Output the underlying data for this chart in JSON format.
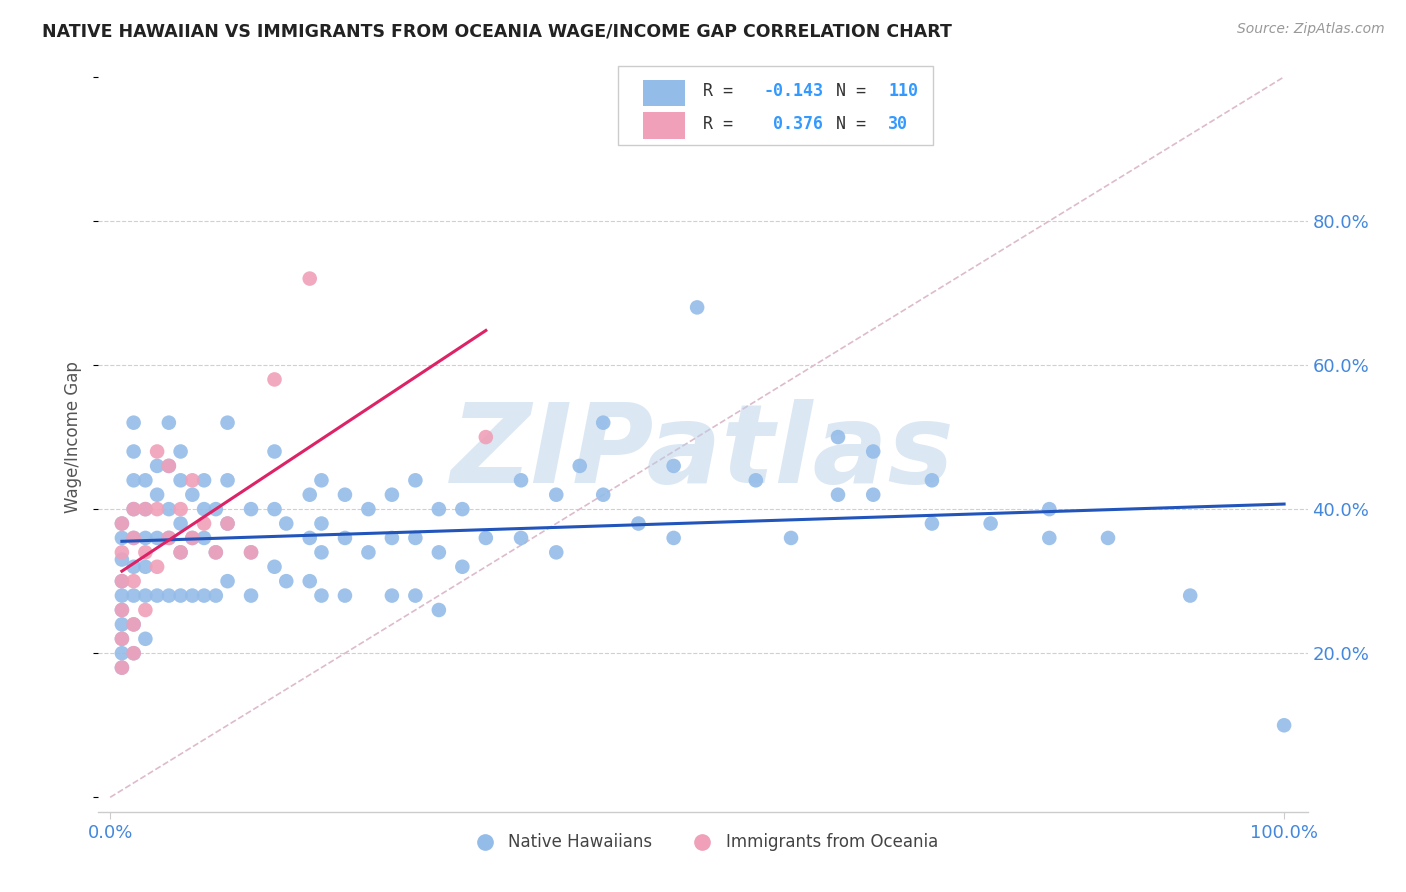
{
  "title": "NATIVE HAWAIIAN VS IMMIGRANTS FROM OCEANIA WAGE/INCOME GAP CORRELATION CHART",
  "source": "Source: ZipAtlas.com",
  "ylabel": "Wage/Income Gap",
  "background_color": "#ffffff",
  "grid_color": "#d0d0d0",
  "watermark": "ZIPatlas",
  "watermark_color": "#b8d0e8",
  "series": [
    {
      "label": "Native Hawaiians",
      "R": -0.143,
      "N": 110,
      "color": "#94bce8",
      "trend_color": "#2255bb",
      "x": [
        0.01,
        0.01,
        0.01,
        0.01,
        0.01,
        0.01,
        0.01,
        0.01,
        0.01,
        0.01,
        0.02,
        0.02,
        0.02,
        0.02,
        0.02,
        0.02,
        0.02,
        0.02,
        0.02,
        0.03,
        0.03,
        0.03,
        0.03,
        0.03,
        0.03,
        0.04,
        0.04,
        0.04,
        0.04,
        0.05,
        0.05,
        0.05,
        0.05,
        0.05,
        0.06,
        0.06,
        0.06,
        0.06,
        0.06,
        0.07,
        0.07,
        0.07,
        0.08,
        0.08,
        0.08,
        0.08,
        0.09,
        0.09,
        0.09,
        0.1,
        0.1,
        0.1,
        0.1,
        0.12,
        0.12,
        0.12,
        0.14,
        0.14,
        0.14,
        0.15,
        0.15,
        0.17,
        0.17,
        0.17,
        0.18,
        0.18,
        0.18,
        0.18,
        0.2,
        0.2,
        0.2,
        0.22,
        0.22,
        0.24,
        0.24,
        0.24,
        0.26,
        0.26,
        0.26,
        0.28,
        0.28,
        0.28,
        0.3,
        0.3,
        0.32,
        0.35,
        0.35,
        0.38,
        0.38,
        0.4,
        0.42,
        0.42,
        0.45,
        0.48,
        0.48,
        0.5,
        0.55,
        0.58,
        0.62,
        0.62,
        0.65,
        0.65,
        0.7,
        0.7,
        0.75,
        0.8,
        0.8,
        0.85,
        0.92,
        1.0
      ],
      "y": [
        0.38,
        0.36,
        0.33,
        0.3,
        0.28,
        0.26,
        0.24,
        0.22,
        0.2,
        0.18,
        0.52,
        0.48,
        0.44,
        0.4,
        0.36,
        0.32,
        0.28,
        0.24,
        0.2,
        0.44,
        0.4,
        0.36,
        0.32,
        0.28,
        0.22,
        0.46,
        0.42,
        0.36,
        0.28,
        0.52,
        0.46,
        0.4,
        0.36,
        0.28,
        0.48,
        0.44,
        0.38,
        0.34,
        0.28,
        0.42,
        0.36,
        0.28,
        0.44,
        0.4,
        0.36,
        0.28,
        0.4,
        0.34,
        0.28,
        0.52,
        0.44,
        0.38,
        0.3,
        0.4,
        0.34,
        0.28,
        0.48,
        0.4,
        0.32,
        0.38,
        0.3,
        0.42,
        0.36,
        0.3,
        0.44,
        0.38,
        0.34,
        0.28,
        0.42,
        0.36,
        0.28,
        0.4,
        0.34,
        0.42,
        0.36,
        0.28,
        0.44,
        0.36,
        0.28,
        0.4,
        0.34,
        0.26,
        0.4,
        0.32,
        0.36,
        0.44,
        0.36,
        0.42,
        0.34,
        0.46,
        0.52,
        0.42,
        0.38,
        0.46,
        0.36,
        0.68,
        0.44,
        0.36,
        0.5,
        0.42,
        0.48,
        0.42,
        0.44,
        0.38,
        0.38,
        0.4,
        0.36,
        0.36,
        0.28,
        0.1
      ]
    },
    {
      "label": "Immigrants from Oceania",
      "R": 0.376,
      "N": 30,
      "color": "#f0a0b8",
      "trend_color": "#dd2266",
      "x": [
        0.01,
        0.01,
        0.01,
        0.01,
        0.01,
        0.01,
        0.02,
        0.02,
        0.02,
        0.02,
        0.02,
        0.03,
        0.03,
        0.03,
        0.04,
        0.04,
        0.04,
        0.05,
        0.05,
        0.06,
        0.06,
        0.07,
        0.07,
        0.08,
        0.09,
        0.1,
        0.12,
        0.14,
        0.17,
        0.32
      ],
      "y": [
        0.38,
        0.34,
        0.3,
        0.26,
        0.22,
        0.18,
        0.4,
        0.36,
        0.3,
        0.24,
        0.2,
        0.4,
        0.34,
        0.26,
        0.48,
        0.4,
        0.32,
        0.46,
        0.36,
        0.4,
        0.34,
        0.44,
        0.36,
        0.38,
        0.34,
        0.38,
        0.34,
        0.58,
        0.72,
        0.5
      ]
    }
  ],
  "tick_color": "#4488dd",
  "ref_line_color": "#cccccc"
}
